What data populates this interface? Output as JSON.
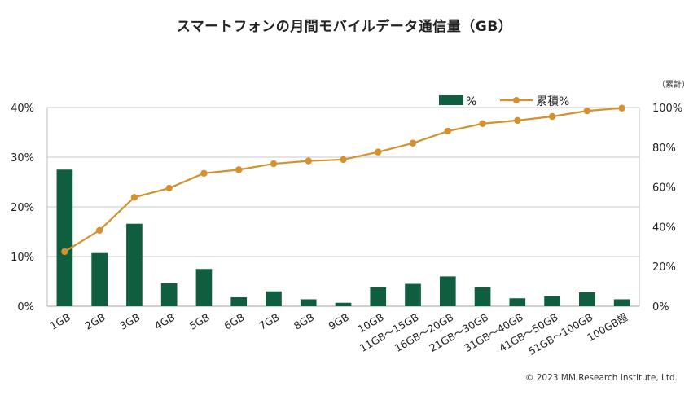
{
  "chart_data": {
    "type": "bar+line",
    "title": "スマートフォンの月間モバイルデータ通信量（GB）",
    "categories": [
      "1GB",
      "2GB",
      "3GB",
      "4GB",
      "5GB",
      "6GB",
      "7GB",
      "8GB",
      "9GB",
      "10GB",
      "11GB～15GB",
      "16GB～20GB",
      "21GB～30GB",
      "31GB～40GB",
      "41GB～50GB",
      "51GB～100GB",
      "100GB超"
    ],
    "series": [
      {
        "name": "%",
        "type": "bar",
        "axis": "left",
        "color": "#0f5e3f",
        "values": [
          27.5,
          10.7,
          16.6,
          4.6,
          7.5,
          1.8,
          3.0,
          1.4,
          0.7,
          3.8,
          4.5,
          6.0,
          3.8,
          1.6,
          2.0,
          2.8,
          1.4
        ]
      },
      {
        "name": "累積%",
        "type": "line",
        "axis": "right",
        "color": "#d4912f",
        "values": [
          27.5,
          38.2,
          54.8,
          59.4,
          66.9,
          68.7,
          71.7,
          73.1,
          73.8,
          77.6,
          82.1,
          88.1,
          91.9,
          93.5,
          95.5,
          98.3,
          99.7
        ]
      }
    ],
    "y_left": {
      "min": 0,
      "max": 40,
      "ticks": [
        "0%",
        "10%",
        "20%",
        "30%",
        "40%"
      ],
      "values": [
        0,
        10,
        20,
        30,
        40
      ]
    },
    "y_right": {
      "min": 0,
      "max": 100,
      "ticks": [
        "0%",
        "20%",
        "40%",
        "60%",
        "80%",
        "100%"
      ],
      "values": [
        0,
        20,
        40,
        60,
        80,
        100
      ],
      "unit_label": "（累計）"
    },
    "legend_position": "top-right",
    "grid": true
  },
  "copyright": "© 2023 MM Research Institute, Ltd."
}
